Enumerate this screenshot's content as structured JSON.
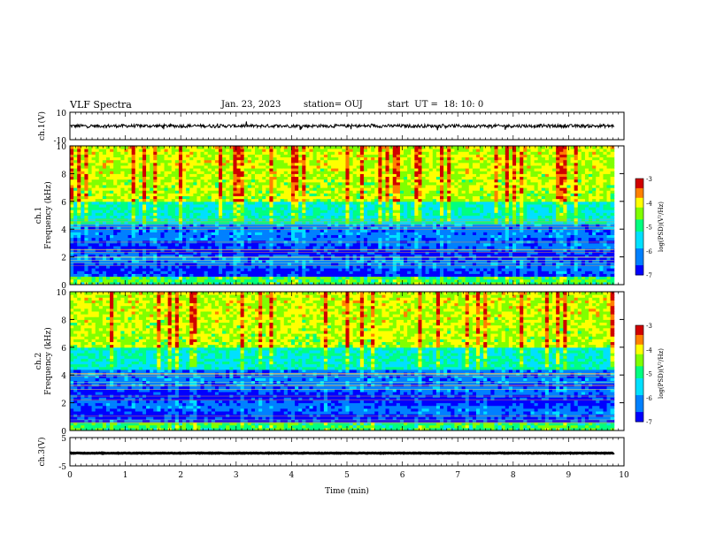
{
  "header": {
    "title": "VLF Spectra",
    "date": "Jan. 23, 2023",
    "station": "station= OUJ",
    "start": "start  UT =  18: 10: 0"
  },
  "chart_data": [
    {
      "type": "line",
      "panel": "ch1-waveform",
      "ylabel": "ch.1(V)",
      "ylim": [
        -10,
        10
      ],
      "y_ticks": [
        "10",
        "-10"
      ],
      "series_color": "#000000",
      "baseline_value": 0,
      "noise_amplitude": 1.2
    },
    {
      "type": "heatmap",
      "panel": "ch1-spectrogram",
      "ylabel": "ch.1\nFrequency (kHz)",
      "ylabel_lines": [
        "ch.1",
        "Frequency (kHz)"
      ],
      "ylim": [
        0,
        10
      ],
      "y_ticks": [
        "0",
        "2",
        "4",
        "6",
        "8",
        "10"
      ],
      "colorbar": {
        "label": "log(PSD)(V²/Hz)",
        "range": [
          -7,
          -3
        ],
        "ticks": [
          "-3",
          "-4",
          "-5",
          "-6",
          "-7"
        ]
      }
    },
    {
      "type": "heatmap",
      "panel": "ch2-spectrogram",
      "ylabel": "ch.2\nFrequency (kHz)",
      "ylabel_lines": [
        "ch.2",
        "Frequency (kHz)"
      ],
      "ylim": [
        0,
        10
      ],
      "y_ticks": [
        "0",
        "2",
        "4",
        "6",
        "8",
        "10"
      ],
      "colorbar": {
        "label": "log(PSD)(V²/Hz)",
        "range": [
          -7,
          -3
        ],
        "ticks": [
          "-3",
          "-4",
          "-5",
          "-6",
          "-7"
        ]
      }
    },
    {
      "type": "line",
      "panel": "ch3-waveform",
      "ylabel": "ch.3(V)",
      "ylim": [
        -5,
        5
      ],
      "y_ticks": [
        "5",
        "-5"
      ],
      "series_color": "#000000",
      "baseline_value": -0.5,
      "noise_amplitude": 0.1
    }
  ],
  "x_axis": {
    "xlabel": "Time (min)",
    "xlim": [
      0,
      10
    ],
    "ticks": [
      "0",
      "1",
      "2",
      "3",
      "4",
      "5",
      "6",
      "7",
      "8",
      "9",
      "10"
    ],
    "data_end": 9.82
  }
}
